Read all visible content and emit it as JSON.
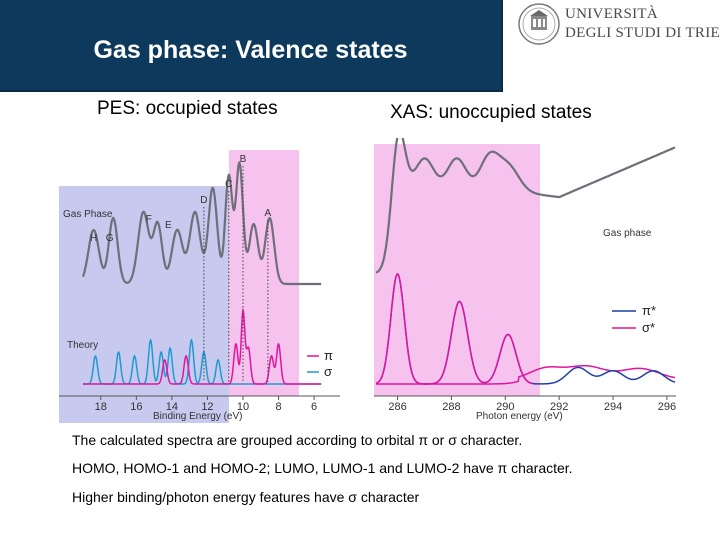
{
  "slide": {
    "title": "Gas phase: Valence states",
    "university_line1": "UNIVERSITÀ",
    "university_line2": "DEGLI STUDI DI TRIESTE",
    "pes_subtitle": "PES: occupied states",
    "xas_subtitle": "XAS: unoccupied states",
    "body_lines": [
      "The calculated spectra are grouped according to orbital π or σ character.",
      "HOMO, HOMO-1 and HOMO-2; LUMO, LUMO-1 and LUMO-2 have π character.",
      "Higher binding/photon energy features have σ character"
    ]
  },
  "colors": {
    "title_bar": "#0d3a5c",
    "pi_curve": "#e0169e",
    "sigma_curve": "#1f9bd1",
    "pi_star_curve": "#1f3fae",
    "sigma_star_curve": "#e0169e",
    "measured_curve": "#6f6f7a",
    "lavender_band": "#c7c9ef",
    "pink_band": "#f6c3ee"
  },
  "chart_data": [
    {
      "type": "line",
      "title": "",
      "xlabel": "Binding Energy (eV)",
      "ylabel": "",
      "xlim": [
        19,
        5.5
      ],
      "x_reversed": true,
      "x_ticks": [
        "18",
        "16",
        "14",
        "12",
        "10",
        "8",
        "6"
      ],
      "panel_labels": [
        "Gas Phase",
        "Theory"
      ],
      "legend": {
        "position": "right",
        "entries": [
          "π",
          "σ"
        ]
      },
      "peak_labels": [
        {
          "label": "B",
          "x": 10.0
        },
        {
          "label": "C",
          "x": 10.8
        },
        {
          "label": "D",
          "x": 12.2
        },
        {
          "label": "E",
          "x": 14.2
        },
        {
          "label": "F",
          "x": 15.3
        },
        {
          "label": "G",
          "x": 17.5
        },
        {
          "label": "H",
          "x": 18.4
        },
        {
          "label": "A",
          "x": 8.6
        }
      ],
      "series": [
        {
          "name": "Gas Phase",
          "peaks": [
            {
              "x": 18.4,
              "h": 0.45,
              "w": 0.3
            },
            {
              "x": 17.3,
              "h": 0.55,
              "w": 0.25
            },
            {
              "x": 15.6,
              "h": 0.6,
              "w": 0.3
            },
            {
              "x": 14.8,
              "h": 0.5,
              "w": 0.25
            },
            {
              "x": 13.7,
              "h": 0.45,
              "w": 0.3
            },
            {
              "x": 12.7,
              "h": 0.6,
              "w": 0.3
            },
            {
              "x": 11.7,
              "h": 0.8,
              "w": 0.25
            },
            {
              "x": 10.8,
              "h": 0.9,
              "w": 0.2
            },
            {
              "x": 10.2,
              "h": 1.0,
              "w": 0.2
            },
            {
              "x": 9.4,
              "h": 0.5,
              "w": 0.25
            },
            {
              "x": 8.5,
              "h": 0.55,
              "w": 0.25
            }
          ],
          "baseline": 0.1
        },
        {
          "name": "π",
          "peaks": [
            {
              "x": 14.4,
              "h": 0.3,
              "w": 0.12
            },
            {
              "x": 13.2,
              "h": 0.35,
              "w": 0.12
            },
            {
              "x": 10.4,
              "h": 0.5,
              "w": 0.12
            },
            {
              "x": 9.7,
              "h": 0.45,
              "w": 0.12
            },
            {
              "x": 8.4,
              "h": 0.35,
              "w": 0.12
            },
            {
              "x": 8.0,
              "h": 0.5,
              "w": 0.12
            },
            {
              "x": 10.0,
              "h": 0.9,
              "w": 0.1
            }
          ]
        },
        {
          "name": "σ",
          "peaks": [
            {
              "x": 18.3,
              "h": 0.35,
              "w": 0.12
            },
            {
              "x": 17.0,
              "h": 0.4,
              "w": 0.12
            },
            {
              "x": 16.1,
              "h": 0.35,
              "w": 0.12
            },
            {
              "x": 15.2,
              "h": 0.55,
              "w": 0.12
            },
            {
              "x": 14.1,
              "h": 0.45,
              "w": 0.12
            },
            {
              "x": 12.9,
              "h": 0.55,
              "w": 0.12
            },
            {
              "x": 12.2,
              "h": 0.4,
              "w": 0.12
            },
            {
              "x": 11.4,
              "h": 0.3,
              "w": 0.12
            },
            {
              "x": 14.6,
              "h": 0.4,
              "w": 0.12
            }
          ]
        }
      ],
      "grid": false
    },
    {
      "type": "line",
      "title": "",
      "xlabel": "Photon energy (eV)",
      "ylabel": "",
      "xlim": [
        285.2,
        296.3
      ],
      "x_ticks": [
        "286",
        "288",
        "290",
        "292",
        "294",
        "296"
      ],
      "panel_labels": [
        "Gas phase"
      ],
      "legend": {
        "position": "right",
        "entries": [
          "π*",
          "σ*"
        ]
      },
      "series": [
        {
          "name": "Gas phase",
          "peaks": [
            {
              "x": 286.0,
              "h": 1.0,
              "w": 0.25
            },
            {
              "x": 287.0,
              "h": 0.4,
              "w": 0.35
            },
            {
              "x": 288.2,
              "h": 0.4,
              "w": 0.35
            },
            {
              "x": 289.4,
              "h": 0.4,
              "w": 0.35
            },
            {
              "x": 290.1,
              "h": 0.3,
              "w": 0.4
            }
          ]
        },
        {
          "name": "π*",
          "peaks": [
            {
              "x": 286.0,
              "h": 1.0,
              "w": 0.25
            },
            {
              "x": 288.3,
              "h": 0.75,
              "w": 0.3
            },
            {
              "x": 290.1,
              "h": 0.45,
              "w": 0.3
            },
            {
              "x": 292.7,
              "h": 0.15,
              "w": 0.4
            },
            {
              "x": 294.0,
              "h": 0.12,
              "w": 0.4
            },
            {
              "x": 295.5,
              "h": 0.12,
              "w": 0.4
            }
          ]
        },
        {
          "name": "σ*",
          "peaks": [
            {
              "x": 291.5,
              "h": 0.1,
              "w": 0.6
            },
            {
              "x": 293.0,
              "h": 0.12,
              "w": 0.7
            },
            {
              "x": 295.0,
              "h": 0.1,
              "w": 0.7
            }
          ]
        }
      ],
      "grid": false
    }
  ]
}
